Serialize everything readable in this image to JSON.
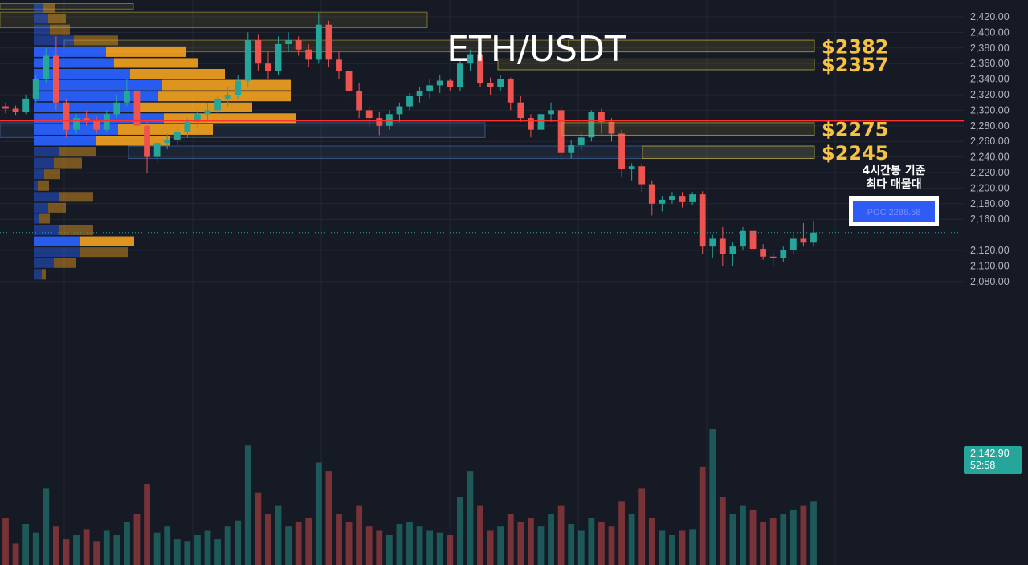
{
  "chart_data": {
    "type": "candlestick",
    "title": "ETH/USDT",
    "ylim": [
      2076,
      2434
    ],
    "y_ticks": [
      2420,
      2400,
      2380,
      2360,
      2340,
      2320,
      2300,
      2280,
      2260,
      2240,
      2220,
      2200,
      2180,
      2160,
      2120,
      2100,
      2080
    ],
    "grid": true,
    "current_price": {
      "value": 2142.9,
      "label": "2,142.90",
      "countdown": "52:58"
    },
    "poc": {
      "value": 2286.58,
      "label": "POC  2286.58",
      "annotation_line1": "4시간봉 기준",
      "annotation_line2": "최다 매물대"
    },
    "levels": [
      {
        "label": "$2382",
        "low": 2375,
        "high": 2390
      },
      {
        "label": "$2357",
        "low": 2352,
        "high": 2366
      },
      {
        "label": "$2275",
        "low": 2268,
        "high": 2284
      },
      {
        "label": "$2245",
        "low": 2238,
        "high": 2254
      }
    ],
    "colors": {
      "up": "#26a69a",
      "down": "#ef5350",
      "volume_profile_up": "#2962ff",
      "volume_profile_down": "#f0a020",
      "level_box": "#b5a33a",
      "poc_line": "#ff3030",
      "price_label": "#f5c242",
      "current_price_bg": "#26a69a"
    },
    "candles": [
      [
        2305,
        2310,
        2296,
        2302
      ],
      [
        2302,
        2306,
        2294,
        2298
      ],
      [
        2298,
        2320,
        2295,
        2315
      ],
      [
        2315,
        2345,
        2310,
        2340
      ],
      [
        2340,
        2380,
        2335,
        2370
      ],
      [
        2370,
        2395,
        2300,
        2310
      ],
      [
        2310,
        2315,
        2265,
        2275
      ],
      [
        2275,
        2295,
        2270,
        2290
      ],
      [
        2290,
        2300,
        2280,
        2286
      ],
      [
        2286,
        2292,
        2270,
        2275
      ],
      [
        2275,
        2300,
        2272,
        2295
      ],
      [
        2295,
        2320,
        2290,
        2310
      ],
      [
        2310,
        2340,
        2305,
        2325
      ],
      [
        2325,
        2335,
        2270,
        2280
      ],
      [
        2280,
        2285,
        2220,
        2240
      ],
      [
        2240,
        2262,
        2232,
        2258
      ],
      [
        2258,
        2270,
        2250,
        2262
      ],
      [
        2262,
        2280,
        2255,
        2272
      ],
      [
        2272,
        2290,
        2265,
        2285
      ],
      [
        2285,
        2300,
        2278,
        2295
      ],
      [
        2295,
        2310,
        2288,
        2300
      ],
      [
        2300,
        2320,
        2295,
        2315
      ],
      [
        2315,
        2330,
        2305,
        2320
      ],
      [
        2320,
        2345,
        2315,
        2338
      ],
      [
        2338,
        2400,
        2330,
        2390
      ],
      [
        2390,
        2398,
        2350,
        2360
      ],
      [
        2360,
        2375,
        2340,
        2350
      ],
      [
        2350,
        2395,
        2345,
        2385
      ],
      [
        2385,
        2400,
        2375,
        2390
      ],
      [
        2390,
        2395,
        2370,
        2378
      ],
      [
        2378,
        2385,
        2355,
        2365
      ],
      [
        2365,
        2425,
        2360,
        2410
      ],
      [
        2410,
        2415,
        2355,
        2365
      ],
      [
        2365,
        2375,
        2340,
        2350
      ],
      [
        2350,
        2355,
        2310,
        2325
      ],
      [
        2325,
        2335,
        2290,
        2300
      ],
      [
        2300,
        2305,
        2280,
        2290
      ],
      [
        2290,
        2298,
        2268,
        2280
      ],
      [
        2280,
        2300,
        2275,
        2295
      ],
      [
        2295,
        2310,
        2285,
        2305
      ],
      [
        2305,
        2322,
        2300,
        2318
      ],
      [
        2318,
        2330,
        2310,
        2325
      ],
      [
        2325,
        2340,
        2315,
        2332
      ],
      [
        2332,
        2345,
        2322,
        2338
      ],
      [
        2338,
        2340,
        2325,
        2330
      ],
      [
        2330,
        2365,
        2325,
        2360
      ],
      [
        2360,
        2378,
        2350,
        2372
      ],
      [
        2372,
        2375,
        2330,
        2335
      ],
      [
        2335,
        2342,
        2320,
        2330
      ],
      [
        2330,
        2345,
        2325,
        2340
      ],
      [
        2340,
        2342,
        2300,
        2310
      ],
      [
        2310,
        2318,
        2285,
        2290
      ],
      [
        2290,
        2295,
        2265,
        2275
      ],
      [
        2275,
        2300,
        2270,
        2295
      ],
      [
        2295,
        2310,
        2285,
        2300
      ],
      [
        2300,
        2305,
        2235,
        2245
      ],
      [
        2245,
        2262,
        2238,
        2255
      ],
      [
        2255,
        2272,
        2248,
        2265
      ],
      [
        2265,
        2300,
        2260,
        2298
      ],
      [
        2298,
        2302,
        2270,
        2285
      ],
      [
        2285,
        2290,
        2260,
        2270
      ],
      [
        2270,
        2275,
        2215,
        2225
      ],
      [
        2225,
        2232,
        2210,
        2228
      ],
      [
        2228,
        2232,
        2195,
        2205
      ],
      [
        2205,
        2210,
        2165,
        2180
      ],
      [
        2180,
        2190,
        2170,
        2185
      ],
      [
        2185,
        2195,
        2180,
        2190
      ],
      [
        2190,
        2195,
        2175,
        2182
      ],
      [
        2182,
        2195,
        2178,
        2192
      ],
      [
        2192,
        2196,
        2115,
        2125
      ],
      [
        2125,
        2140,
        2110,
        2135
      ],
      [
        2135,
        2150,
        2100,
        2115
      ],
      [
        2115,
        2130,
        2100,
        2125
      ],
      [
        2125,
        2150,
        2120,
        2145
      ],
      [
        2145,
        2150,
        2115,
        2122
      ],
      [
        2122,
        2128,
        2108,
        2112
      ],
      [
        2112,
        2118,
        2100,
        2110
      ],
      [
        2110,
        2125,
        2105,
        2120
      ],
      [
        2120,
        2140,
        2115,
        2135
      ],
      [
        2135,
        2155,
        2125,
        2130
      ],
      [
        2130,
        2158,
        2125,
        2143
      ]
    ],
    "volumes": [
      55,
      25,
      48,
      38,
      90,
      45,
      30,
      35,
      42,
      28,
      40,
      35,
      50,
      60,
      95,
      38,
      45,
      30,
      28,
      35,
      40,
      30,
      45,
      52,
      140,
      85,
      60,
      70,
      45,
      50,
      55,
      120,
      110,
      60,
      50,
      70,
      45,
      40,
      35,
      48,
      50,
      45,
      40,
      38,
      35,
      80,
      110,
      70,
      40,
      45,
      60,
      50,
      55,
      45,
      60,
      70,
      48,
      40,
      55,
      50,
      45,
      75,
      60,
      90,
      55,
      40,
      35,
      40,
      42,
      115,
      160,
      80,
      60,
      70,
      65,
      50,
      55,
      60,
      65,
      70,
      75
    ],
    "volume_profile": [
      {
        "low": 2424,
        "high": 2437,
        "up": 12,
        "down": 15
      },
      {
        "low": 2410,
        "high": 2424,
        "up": 18,
        "down": 22
      },
      {
        "low": 2396,
        "high": 2410,
        "up": 20,
        "down": 25
      },
      {
        "low": 2382,
        "high": 2396,
        "up": 50,
        "down": 55
      },
      {
        "low": 2367,
        "high": 2382,
        "up": 90,
        "down": 100
      },
      {
        "low": 2353,
        "high": 2367,
        "up": 100,
        "down": 105
      },
      {
        "low": 2339,
        "high": 2353,
        "up": 120,
        "down": 118
      },
      {
        "low": 2324,
        "high": 2339,
        "up": 160,
        "down": 160
      },
      {
        "low": 2310,
        "high": 2324,
        "up": 155,
        "down": 165
      },
      {
        "low": 2296,
        "high": 2310,
        "up": 132,
        "down": 140
      },
      {
        "low": 2282,
        "high": 2296,
        "up": 162,
        "down": 165
      },
      {
        "low": 2267,
        "high": 2282,
        "up": 105,
        "down": 118
      },
      {
        "low": 2253,
        "high": 2267,
        "up": 77,
        "down": 93
      },
      {
        "low": 2239,
        "high": 2253,
        "up": 32,
        "down": 46
      },
      {
        "low": 2224,
        "high": 2239,
        "up": 25,
        "down": 35
      },
      {
        "low": 2210,
        "high": 2224,
        "up": 13,
        "down": 20
      },
      {
        "low": 2195,
        "high": 2210,
        "up": 5,
        "down": 14
      },
      {
        "low": 2181,
        "high": 2195,
        "up": 32,
        "down": 42
      },
      {
        "low": 2167,
        "high": 2181,
        "up": 18,
        "down": 22
      },
      {
        "low": 2153,
        "high": 2167,
        "up": 6,
        "down": 14
      },
      {
        "low": 2138,
        "high": 2153,
        "up": 32,
        "down": 42
      },
      {
        "low": 2124,
        "high": 2138,
        "up": 58,
        "down": 67
      },
      {
        "low": 2110,
        "high": 2124,
        "up": 58,
        "down": 60
      },
      {
        "low": 2096,
        "high": 2110,
        "up": 25,
        "down": 28
      },
      {
        "low": 2081,
        "high": 2096,
        "up": 10,
        "down": 5
      }
    ]
  }
}
